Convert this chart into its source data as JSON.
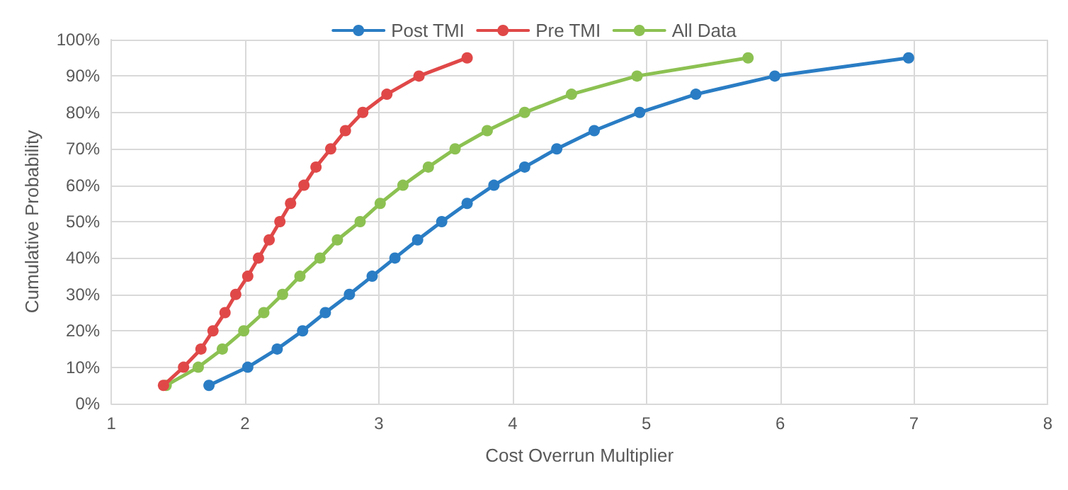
{
  "chart_data": {
    "type": "line",
    "xlabel": "Cost Overrun Multiplier",
    "ylabel": "Cumulative Probability",
    "xlim": [
      1,
      8
    ],
    "xticks": [
      1,
      2,
      3,
      4,
      5,
      6,
      7,
      8
    ],
    "ylim": [
      0,
      100
    ],
    "yticks": [
      {
        "value": 0,
        "label": "0%"
      },
      {
        "value": 10,
        "label": "10%"
      },
      {
        "value": 20,
        "label": "20%"
      },
      {
        "value": 30,
        "label": "30%"
      },
      {
        "value": 40,
        "label": "40%"
      },
      {
        "value": 50,
        "label": "50%"
      },
      {
        "value": 60,
        "label": "60%"
      },
      {
        "value": 70,
        "label": "70%"
      },
      {
        "value": 80,
        "label": "80%"
      },
      {
        "value": 90,
        "label": "90%"
      },
      {
        "value": 100,
        "label": "100%"
      }
    ],
    "grid": true,
    "legend": "top",
    "marker": "circle",
    "line_style": "solid",
    "series": [
      {
        "name": "Post TMI",
        "color": "#2a7dc4",
        "x": [
          1.73,
          2.02,
          2.24,
          2.43,
          2.6,
          2.78,
          2.95,
          3.12,
          3.29,
          3.47,
          3.66,
          3.86,
          4.09,
          4.33,
          4.61,
          4.95,
          5.37,
          5.96,
          6.96
        ],
        "values": [
          5,
          10,
          15,
          20,
          25,
          30,
          35,
          40,
          45,
          50,
          55,
          60,
          65,
          70,
          75,
          80,
          85,
          90,
          95
        ]
      },
      {
        "name": "Pre TMI",
        "color": "#e04848",
        "x": [
          1.39,
          1.54,
          1.67,
          1.76,
          1.85,
          1.93,
          2.02,
          2.1,
          2.18,
          2.26,
          2.34,
          2.44,
          2.53,
          2.64,
          2.75,
          2.88,
          3.06,
          3.3,
          3.66
        ],
        "values": [
          5,
          10,
          15,
          20,
          25,
          30,
          35,
          40,
          45,
          50,
          55,
          60,
          65,
          70,
          75,
          80,
          85,
          90,
          95
        ]
      },
      {
        "name": "All Data",
        "color": "#8cc152",
        "x": [
          1.41,
          1.65,
          1.83,
          1.99,
          2.14,
          2.28,
          2.41,
          2.56,
          2.69,
          2.86,
          3.01,
          3.18,
          3.37,
          3.57,
          3.81,
          4.09,
          4.44,
          4.93,
          5.76
        ],
        "values": [
          5,
          10,
          15,
          20,
          25,
          30,
          35,
          40,
          45,
          50,
          55,
          60,
          65,
          70,
          75,
          80,
          85,
          90,
          95
        ]
      }
    ]
  }
}
